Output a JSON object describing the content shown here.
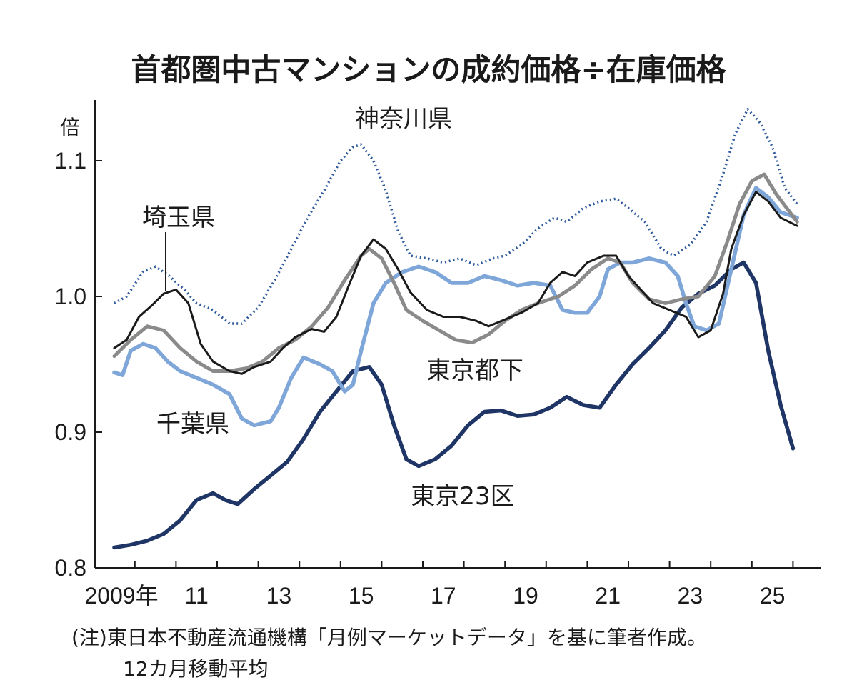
{
  "chart_data": {
    "type": "line",
    "title": "首都圏中古マンションの成約価格÷在庫価格",
    "ylabel": "倍",
    "xlabel": "",
    "ylim": [
      0.8,
      1.14
    ],
    "xlim": [
      2008.9,
      2025.9
    ],
    "y_ticks": [
      {
        "value": 0.8,
        "label": "0.8"
      },
      {
        "value": 0.9,
        "label": "0.9"
      },
      {
        "value": 1.0,
        "label": "1.0"
      },
      {
        "value": 1.1,
        "label": "1.1"
      }
    ],
    "x_ticks": [
      {
        "value": 2009,
        "label": "2009年"
      },
      {
        "value": 2011,
        "label": "11"
      },
      {
        "value": 2013,
        "label": "13"
      },
      {
        "value": 2015,
        "label": "15"
      },
      {
        "value": 2017,
        "label": "17"
      },
      {
        "value": 2019,
        "label": "19"
      },
      {
        "value": 2021,
        "label": "21"
      },
      {
        "value": 2023,
        "label": "23"
      },
      {
        "value": 2025,
        "label": "25"
      }
    ],
    "grid": false,
    "legend": "inline labels",
    "series": [
      {
        "name": "神奈川県",
        "color": "#2e5a9c",
        "style": "dotted",
        "points": [
          [
            2009.0,
            0.995
          ],
          [
            2009.3,
            1.0
          ],
          [
            2009.7,
            1.018
          ],
          [
            2010.0,
            1.022
          ],
          [
            2010.3,
            1.016
          ],
          [
            2010.7,
            1.005
          ],
          [
            2011.0,
            0.995
          ],
          [
            2011.4,
            0.99
          ],
          [
            2011.8,
            0.98
          ],
          [
            2012.1,
            0.98
          ],
          [
            2012.5,
            0.992
          ],
          [
            2012.9,
            1.012
          ],
          [
            2013.3,
            1.035
          ],
          [
            2013.7,
            1.058
          ],
          [
            2014.1,
            1.078
          ],
          [
            2014.5,
            1.1
          ],
          [
            2014.8,
            1.11
          ],
          [
            2015.0,
            1.112
          ],
          [
            2015.3,
            1.1
          ],
          [
            2015.6,
            1.078
          ],
          [
            2015.9,
            1.048
          ],
          [
            2016.2,
            1.03
          ],
          [
            2016.6,
            1.028
          ],
          [
            2017.0,
            1.025
          ],
          [
            2017.4,
            1.028
          ],
          [
            2017.8,
            1.023
          ],
          [
            2018.2,
            1.028
          ],
          [
            2018.5,
            1.03
          ],
          [
            2018.9,
            1.038
          ],
          [
            2019.3,
            1.05
          ],
          [
            2019.7,
            1.058
          ],
          [
            2020.0,
            1.055
          ],
          [
            2020.4,
            1.065
          ],
          [
            2020.8,
            1.07
          ],
          [
            2021.2,
            1.072
          ],
          [
            2021.5,
            1.065
          ],
          [
            2021.9,
            1.055
          ],
          [
            2022.3,
            1.035
          ],
          [
            2022.6,
            1.03
          ],
          [
            2023.0,
            1.038
          ],
          [
            2023.4,
            1.055
          ],
          [
            2023.8,
            1.09
          ],
          [
            2024.1,
            1.12
          ],
          [
            2024.4,
            1.138
          ],
          [
            2024.7,
            1.128
          ],
          [
            2025.0,
            1.11
          ],
          [
            2025.3,
            1.08
          ],
          [
            2025.6,
            1.068
          ]
        ]
      },
      {
        "name": "埼玉県",
        "color": "#1a1a1a",
        "style": "solid",
        "points": [
          [
            2009.0,
            0.962
          ],
          [
            2009.3,
            0.968
          ],
          [
            2009.6,
            0.985
          ],
          [
            2009.9,
            0.993
          ],
          [
            2010.2,
            1.002
          ],
          [
            2010.5,
            1.005
          ],
          [
            2010.8,
            0.995
          ],
          [
            2011.1,
            0.965
          ],
          [
            2011.4,
            0.952
          ],
          [
            2011.8,
            0.945
          ],
          [
            2012.1,
            0.943
          ],
          [
            2012.4,
            0.948
          ],
          [
            2012.8,
            0.952
          ],
          [
            2013.1,
            0.962
          ],
          [
            2013.4,
            0.97
          ],
          [
            2013.8,
            0.976
          ],
          [
            2014.1,
            0.974
          ],
          [
            2014.4,
            0.985
          ],
          [
            2014.7,
            1.008
          ],
          [
            2015.0,
            1.03
          ],
          [
            2015.3,
            1.042
          ],
          [
            2015.6,
            1.035
          ],
          [
            2015.9,
            1.02
          ],
          [
            2016.2,
            1.003
          ],
          [
            2016.6,
            0.99
          ],
          [
            2017.0,
            0.985
          ],
          [
            2017.4,
            0.985
          ],
          [
            2017.8,
            0.982
          ],
          [
            2018.1,
            0.978
          ],
          [
            2018.5,
            0.983
          ],
          [
            2018.9,
            0.988
          ],
          [
            2019.3,
            0.995
          ],
          [
            2019.6,
            1.01
          ],
          [
            2019.9,
            1.018
          ],
          [
            2020.2,
            1.015
          ],
          [
            2020.5,
            1.025
          ],
          [
            2020.9,
            1.03
          ],
          [
            2021.2,
            1.03
          ],
          [
            2021.5,
            1.015
          ],
          [
            2021.8,
            1.005
          ],
          [
            2022.1,
            0.995
          ],
          [
            2022.5,
            0.99
          ],
          [
            2022.9,
            0.985
          ],
          [
            2023.2,
            0.97
          ],
          [
            2023.5,
            0.975
          ],
          [
            2023.8,
            1.002
          ],
          [
            2024.0,
            1.035
          ],
          [
            2024.3,
            1.06
          ],
          [
            2024.6,
            1.077
          ],
          [
            2024.9,
            1.07
          ],
          [
            2025.2,
            1.058
          ],
          [
            2025.6,
            1.052
          ]
        ]
      },
      {
        "name": "東京都下",
        "color": "#8a8a8a",
        "style": "solid",
        "points": [
          [
            2009.0,
            0.956
          ],
          [
            2009.4,
            0.968
          ],
          [
            2009.8,
            0.978
          ],
          [
            2010.2,
            0.975
          ],
          [
            2010.6,
            0.962
          ],
          [
            2011.0,
            0.952
          ],
          [
            2011.4,
            0.945
          ],
          [
            2011.8,
            0.945
          ],
          [
            2012.2,
            0.947
          ],
          [
            2012.6,
            0.952
          ],
          [
            2013.0,
            0.962
          ],
          [
            2013.4,
            0.968
          ],
          [
            2013.8,
            0.978
          ],
          [
            2014.2,
            0.992
          ],
          [
            2014.6,
            1.012
          ],
          [
            2015.0,
            1.03
          ],
          [
            2015.2,
            1.035
          ],
          [
            2015.5,
            1.028
          ],
          [
            2015.8,
            1.01
          ],
          [
            2016.1,
            0.99
          ],
          [
            2016.5,
            0.982
          ],
          [
            2016.9,
            0.975
          ],
          [
            2017.3,
            0.968
          ],
          [
            2017.7,
            0.966
          ],
          [
            2018.1,
            0.972
          ],
          [
            2018.5,
            0.982
          ],
          [
            2018.9,
            0.99
          ],
          [
            2019.3,
            0.995
          ],
          [
            2019.8,
            1.0
          ],
          [
            2020.2,
            1.008
          ],
          [
            2020.6,
            1.02
          ],
          [
            2021.0,
            1.028
          ],
          [
            2021.3,
            1.025
          ],
          [
            2021.6,
            1.01
          ],
          [
            2022.0,
            0.998
          ],
          [
            2022.4,
            0.995
          ],
          [
            2022.8,
            0.998
          ],
          [
            2023.2,
            1.0
          ],
          [
            2023.6,
            1.015
          ],
          [
            2023.9,
            1.04
          ],
          [
            2024.2,
            1.068
          ],
          [
            2024.5,
            1.085
          ],
          [
            2024.8,
            1.09
          ],
          [
            2025.1,
            1.075
          ],
          [
            2025.6,
            1.055
          ]
        ]
      },
      {
        "name": "千葉県",
        "color": "#7ea6d8",
        "style": "solid",
        "points": [
          [
            2009.0,
            0.944
          ],
          [
            2009.2,
            0.942
          ],
          [
            2009.4,
            0.96
          ],
          [
            2009.7,
            0.965
          ],
          [
            2010.0,
            0.962
          ],
          [
            2010.3,
            0.952
          ],
          [
            2010.6,
            0.945
          ],
          [
            2011.0,
            0.94
          ],
          [
            2011.4,
            0.935
          ],
          [
            2011.8,
            0.928
          ],
          [
            2012.1,
            0.91
          ],
          [
            2012.4,
            0.905
          ],
          [
            2012.8,
            0.908
          ],
          [
            2013.0,
            0.918
          ],
          [
            2013.3,
            0.94
          ],
          [
            2013.6,
            0.955
          ],
          [
            2014.0,
            0.95
          ],
          [
            2014.3,
            0.945
          ],
          [
            2014.6,
            0.93
          ],
          [
            2014.8,
            0.935
          ],
          [
            2015.0,
            0.96
          ],
          [
            2015.3,
            0.995
          ],
          [
            2015.6,
            1.01
          ],
          [
            2016.0,
            1.018
          ],
          [
            2016.4,
            1.022
          ],
          [
            2016.8,
            1.018
          ],
          [
            2017.2,
            1.01
          ],
          [
            2017.6,
            1.01
          ],
          [
            2018.0,
            1.015
          ],
          [
            2018.4,
            1.012
          ],
          [
            2018.8,
            1.008
          ],
          [
            2019.2,
            1.01
          ],
          [
            2019.6,
            1.008
          ],
          [
            2019.9,
            0.99
          ],
          [
            2020.2,
            0.988
          ],
          [
            2020.5,
            0.988
          ],
          [
            2020.8,
            1.0
          ],
          [
            2021.0,
            1.02
          ],
          [
            2021.3,
            1.025
          ],
          [
            2021.6,
            1.025
          ],
          [
            2022.0,
            1.028
          ],
          [
            2022.4,
            1.025
          ],
          [
            2022.7,
            1.015
          ],
          [
            2022.9,
            0.995
          ],
          [
            2023.1,
            0.978
          ],
          [
            2023.4,
            0.975
          ],
          [
            2023.7,
            0.98
          ],
          [
            2024.0,
            1.02
          ],
          [
            2024.3,
            1.06
          ],
          [
            2024.6,
            1.08
          ],
          [
            2024.9,
            1.073
          ],
          [
            2025.2,
            1.062
          ],
          [
            2025.6,
            1.058
          ]
        ]
      },
      {
        "name": "東京23区",
        "color": "#1f3565",
        "style": "solid",
        "points": [
          [
            2009.0,
            0.815
          ],
          [
            2009.4,
            0.817
          ],
          [
            2009.8,
            0.82
          ],
          [
            2010.2,
            0.825
          ],
          [
            2010.6,
            0.835
          ],
          [
            2011.0,
            0.85
          ],
          [
            2011.4,
            0.855
          ],
          [
            2011.7,
            0.85
          ],
          [
            2012.0,
            0.847
          ],
          [
            2012.4,
            0.858
          ],
          [
            2012.8,
            0.868
          ],
          [
            2013.2,
            0.878
          ],
          [
            2013.6,
            0.895
          ],
          [
            2014.0,
            0.915
          ],
          [
            2014.4,
            0.93
          ],
          [
            2014.8,
            0.945
          ],
          [
            2015.2,
            0.948
          ],
          [
            2015.5,
            0.935
          ],
          [
            2015.8,
            0.905
          ],
          [
            2016.1,
            0.88
          ],
          [
            2016.4,
            0.875
          ],
          [
            2016.8,
            0.88
          ],
          [
            2017.2,
            0.89
          ],
          [
            2017.6,
            0.905
          ],
          [
            2018.0,
            0.915
          ],
          [
            2018.4,
            0.916
          ],
          [
            2018.8,
            0.912
          ],
          [
            2019.2,
            0.913
          ],
          [
            2019.6,
            0.918
          ],
          [
            2020.0,
            0.926
          ],
          [
            2020.4,
            0.92
          ],
          [
            2020.8,
            0.918
          ],
          [
            2021.2,
            0.935
          ],
          [
            2021.6,
            0.95
          ],
          [
            2022.0,
            0.962
          ],
          [
            2022.4,
            0.975
          ],
          [
            2022.8,
            0.992
          ],
          [
            2023.2,
            1.002
          ],
          [
            2023.6,
            1.008
          ],
          [
            2024.0,
            1.02
          ],
          [
            2024.3,
            1.025
          ],
          [
            2024.6,
            1.01
          ],
          [
            2024.9,
            0.96
          ],
          [
            2025.2,
            0.92
          ],
          [
            2025.5,
            0.888
          ]
        ]
      }
    ],
    "series_labels": [
      {
        "text": "神奈川県"
      },
      {
        "text": "埼玉県"
      },
      {
        "text": "東京都下"
      },
      {
        "text": "千葉県"
      },
      {
        "text": "東京23区"
      }
    ],
    "notes": [
      "(注)東日本不動産流通機構「月例マーケットデータ」を基に筆者作成。",
      "12カ月移動平均"
    ]
  }
}
